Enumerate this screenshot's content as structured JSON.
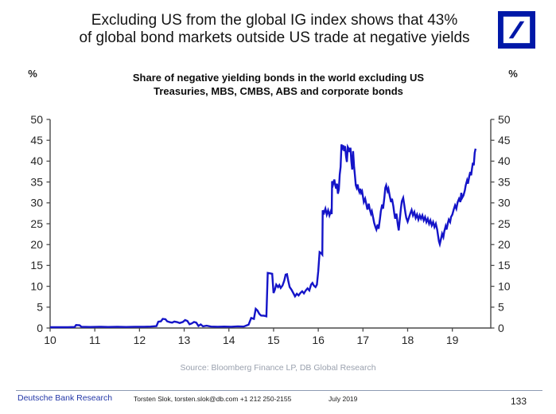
{
  "header": {
    "title_lines": [
      "Excluding US from the global IG index shows that 43%",
      "of global bond markets outside US trade at negative yields"
    ],
    "logo_name": "deutsche-bank-logo"
  },
  "chart_data": {
    "type": "line",
    "title_lines": [
      "Share of negative yielding bonds in the world excluding US",
      "Treasuries, MBS, CMBS, ABS and corporate bonds"
    ],
    "grid": false,
    "legend_position": "none",
    "line_color": "#1414c8",
    "axis_color": "#4a4a4a",
    "y_axis": {
      "unit_left": "%",
      "unit_right": "%",
      "range": [
        0,
        50
      ],
      "ticks": [
        0,
        5,
        10,
        15,
        20,
        25,
        30,
        35,
        40,
        45,
        50
      ]
    },
    "x_axis": {
      "range": [
        2010,
        2019.86
      ],
      "tick_years": [
        2010,
        2011,
        2012,
        2013,
        2014,
        2015,
        2016,
        2017,
        2018,
        2019
      ],
      "tick_labels": [
        "10",
        "11",
        "12",
        "13",
        "14",
        "15",
        "16",
        "17",
        "18",
        "19"
      ]
    },
    "series": [
      {
        "name": "Share of negative yielding bonds excluding US (%)",
        "points": [
          [
            2010.0,
            0.2
          ],
          [
            2010.2,
            0.2
          ],
          [
            2010.4,
            0.2
          ],
          [
            2010.55,
            0.25
          ],
          [
            2010.58,
            0.7
          ],
          [
            2010.66,
            0.65
          ],
          [
            2010.7,
            0.3
          ],
          [
            2010.9,
            0.25
          ],
          [
            2011.1,
            0.3
          ],
          [
            2011.3,
            0.25
          ],
          [
            2011.5,
            0.3
          ],
          [
            2011.7,
            0.25
          ],
          [
            2011.9,
            0.3
          ],
          [
            2012.1,
            0.3
          ],
          [
            2012.25,
            0.35
          ],
          [
            2012.38,
            0.45
          ],
          [
            2012.42,
            1.5
          ],
          [
            2012.48,
            1.6
          ],
          [
            2012.52,
            2.2
          ],
          [
            2012.58,
            2.1
          ],
          [
            2012.62,
            1.6
          ],
          [
            2012.68,
            1.4
          ],
          [
            2012.73,
            1.3
          ],
          [
            2012.78,
            1.55
          ],
          [
            2012.85,
            1.4
          ],
          [
            2012.9,
            1.2
          ],
          [
            2012.97,
            1.45
          ],
          [
            2013.02,
            1.9
          ],
          [
            2013.07,
            1.7
          ],
          [
            2013.12,
            0.9
          ],
          [
            2013.17,
            1.1
          ],
          [
            2013.22,
            1.45
          ],
          [
            2013.27,
            1.3
          ],
          [
            2013.32,
            0.5
          ],
          [
            2013.37,
            0.85
          ],
          [
            2013.42,
            0.4
          ],
          [
            2013.5,
            0.55
          ],
          [
            2013.6,
            0.35
          ],
          [
            2013.75,
            0.3
          ],
          [
            2013.9,
            0.35
          ],
          [
            2014.05,
            0.3
          ],
          [
            2014.2,
            0.4
          ],
          [
            2014.33,
            0.35
          ],
          [
            2014.44,
            0.8
          ],
          [
            2014.5,
            2.4
          ],
          [
            2014.56,
            2.2
          ],
          [
            2014.6,
            4.6
          ],
          [
            2014.64,
            4.2
          ],
          [
            2014.68,
            3.4
          ],
          [
            2014.72,
            3.0
          ],
          [
            2014.78,
            2.95
          ],
          [
            2014.84,
            2.8
          ],
          [
            2014.87,
            13.2
          ],
          [
            2014.93,
            13.1
          ],
          [
            2014.97,
            13.0
          ],
          [
            2015.0,
            8.4
          ],
          [
            2015.03,
            9.2
          ],
          [
            2015.06,
            10.4
          ],
          [
            2015.1,
            9.8
          ],
          [
            2015.13,
            10.3
          ],
          [
            2015.16,
            9.6
          ],
          [
            2015.2,
            10.2
          ],
          [
            2015.24,
            11.4
          ],
          [
            2015.27,
            12.8
          ],
          [
            2015.3,
            12.9
          ],
          [
            2015.33,
            11.2
          ],
          [
            2015.36,
            9.8
          ],
          [
            2015.4,
            9.2
          ],
          [
            2015.44,
            8.4
          ],
          [
            2015.48,
            7.6
          ],
          [
            2015.52,
            8.2
          ],
          [
            2015.56,
            7.8
          ],
          [
            2015.6,
            8.4
          ],
          [
            2015.64,
            8.8
          ],
          [
            2015.68,
            8.3
          ],
          [
            2015.72,
            9.0
          ],
          [
            2015.76,
            9.5
          ],
          [
            2015.8,
            9.0
          ],
          [
            2015.84,
            10.4
          ],
          [
            2015.87,
            10.8
          ],
          [
            2015.9,
            10.2
          ],
          [
            2015.94,
            9.8
          ],
          [
            2015.97,
            10.4
          ],
          [
            2016.0,
            13.6
          ],
          [
            2016.03,
            18.2
          ],
          [
            2016.06,
            18.0
          ],
          [
            2016.09,
            17.6
          ],
          [
            2016.1,
            28.2
          ],
          [
            2016.13,
            27.6
          ],
          [
            2016.16,
            28.6
          ],
          [
            2016.19,
            27.2
          ],
          [
            2016.22,
            28.2
          ],
          [
            2016.25,
            27.0
          ],
          [
            2016.28,
            28.0
          ],
          [
            2016.3,
            27.3
          ],
          [
            2016.31,
            35.2
          ],
          [
            2016.33,
            34.4
          ],
          [
            2016.36,
            35.6
          ],
          [
            2016.38,
            34.2
          ],
          [
            2016.4,
            33.4
          ],
          [
            2016.42,
            34.6
          ],
          [
            2016.44,
            32.2
          ],
          [
            2016.46,
            33.2
          ],
          [
            2016.48,
            36.8
          ],
          [
            2016.5,
            38.6
          ],
          [
            2016.52,
            44.0
          ],
          [
            2016.54,
            43.2
          ],
          [
            2016.56,
            43.8
          ],
          [
            2016.58,
            42.4
          ],
          [
            2016.6,
            43.6
          ],
          [
            2016.62,
            41.2
          ],
          [
            2016.64,
            39.8
          ],
          [
            2016.66,
            43.4
          ],
          [
            2016.68,
            43.0
          ],
          [
            2016.7,
            42.2
          ],
          [
            2016.72,
            43.2
          ],
          [
            2016.74,
            40.0
          ],
          [
            2016.76,
            38.0
          ],
          [
            2016.78,
            42.4
          ],
          [
            2016.8,
            38.8
          ],
          [
            2016.82,
            36.6
          ],
          [
            2016.84,
            34.2
          ],
          [
            2016.86,
            33.6
          ],
          [
            2016.88,
            34.4
          ],
          [
            2016.9,
            33.2
          ],
          [
            2016.92,
            32.6
          ],
          [
            2016.94,
            33.4
          ],
          [
            2016.96,
            32.4
          ],
          [
            2016.98,
            32.8
          ],
          [
            2017.0,
            31.5
          ],
          [
            2017.02,
            30.2
          ],
          [
            2017.05,
            31.0
          ],
          [
            2017.08,
            29.4
          ],
          [
            2017.1,
            28.4
          ],
          [
            2017.13,
            29.8
          ],
          [
            2017.15,
            28.6
          ],
          [
            2017.18,
            27.4
          ],
          [
            2017.2,
            28.0
          ],
          [
            2017.23,
            26.4
          ],
          [
            2017.25,
            25.2
          ],
          [
            2017.28,
            24.2
          ],
          [
            2017.3,
            23.6
          ],
          [
            2017.33,
            24.8
          ],
          [
            2017.35,
            23.8
          ],
          [
            2017.38,
            26.2
          ],
          [
            2017.4,
            28.0
          ],
          [
            2017.43,
            29.6
          ],
          [
            2017.45,
            28.6
          ],
          [
            2017.48,
            31.4
          ],
          [
            2017.5,
            33.6
          ],
          [
            2017.52,
            34.2
          ],
          [
            2017.55,
            32.8
          ],
          [
            2017.57,
            33.4
          ],
          [
            2017.6,
            31.6
          ],
          [
            2017.63,
            30.2
          ],
          [
            2017.65,
            31.0
          ],
          [
            2017.68,
            29.2
          ],
          [
            2017.7,
            27.6
          ],
          [
            2017.72,
            26.2
          ],
          [
            2017.75,
            27.4
          ],
          [
            2017.78,
            24.8
          ],
          [
            2017.8,
            23.4
          ],
          [
            2017.82,
            25.6
          ],
          [
            2017.85,
            28.8
          ],
          [
            2017.87,
            30.4
          ],
          [
            2017.9,
            31.2
          ],
          [
            2017.92,
            29.8
          ],
          [
            2017.95,
            27.6
          ],
          [
            2017.97,
            26.4
          ],
          [
            2018.0,
            25.5
          ],
          [
            2018.03,
            26.5
          ],
          [
            2018.06,
            27.5
          ],
          [
            2018.09,
            28.3
          ],
          [
            2018.12,
            27.0
          ],
          [
            2018.15,
            27.8
          ],
          [
            2018.18,
            26.4
          ],
          [
            2018.21,
            27.2
          ],
          [
            2018.24,
            26.0
          ],
          [
            2018.27,
            27.0
          ],
          [
            2018.3,
            26.2
          ],
          [
            2018.33,
            27.0
          ],
          [
            2018.36,
            25.8
          ],
          [
            2018.39,
            26.6
          ],
          [
            2018.42,
            25.4
          ],
          [
            2018.45,
            26.2
          ],
          [
            2018.48,
            25.0
          ],
          [
            2018.51,
            25.8
          ],
          [
            2018.54,
            24.6
          ],
          [
            2018.57,
            25.4
          ],
          [
            2018.6,
            24.2
          ],
          [
            2018.63,
            25.0
          ],
          [
            2018.66,
            23.6
          ],
          [
            2018.68,
            22.2
          ],
          [
            2018.7,
            20.8
          ],
          [
            2018.72,
            20.1
          ],
          [
            2018.75,
            21.5
          ],
          [
            2018.77,
            22.6
          ],
          [
            2018.8,
            21.8
          ],
          [
            2018.82,
            23.2
          ],
          [
            2018.85,
            24.4
          ],
          [
            2018.87,
            23.6
          ],
          [
            2018.9,
            25.2
          ],
          [
            2018.92,
            26.0
          ],
          [
            2018.95,
            25.4
          ],
          [
            2018.97,
            26.6
          ],
          [
            2019.0,
            27.2
          ],
          [
            2019.03,
            28.4
          ],
          [
            2019.06,
            29.4
          ],
          [
            2019.09,
            28.6
          ],
          [
            2019.12,
            30.2
          ],
          [
            2019.15,
            31.0
          ],
          [
            2019.18,
            30.2
          ],
          [
            2019.2,
            32.4
          ],
          [
            2019.22,
            31.2
          ],
          [
            2019.25,
            31.8
          ],
          [
            2019.28,
            33.0
          ],
          [
            2019.3,
            34.2
          ],
          [
            2019.33,
            35.4
          ],
          [
            2019.35,
            34.6
          ],
          [
            2019.38,
            36.4
          ],
          [
            2019.4,
            37.4
          ],
          [
            2019.42,
            36.6
          ],
          [
            2019.44,
            38.2
          ],
          [
            2019.46,
            39.6
          ],
          [
            2019.48,
            39.0
          ],
          [
            2019.5,
            42.0
          ],
          [
            2019.52,
            43.0
          ]
        ]
      }
    ]
  },
  "source_line": "Source: Bloomberg Finance LP, DB Global Research",
  "footer": {
    "brand": "Deutsche Bank Research",
    "contact": "Torsten Slok, torsten.slok@db.com  +1 212 250-2155",
    "date": "July 2019",
    "page": "133"
  },
  "colors": {
    "logo_blue": "#0018a8",
    "line_blue": "#1414c8",
    "brand_text_blue": "#2438a8",
    "source_gray": "#9aa1ae"
  }
}
